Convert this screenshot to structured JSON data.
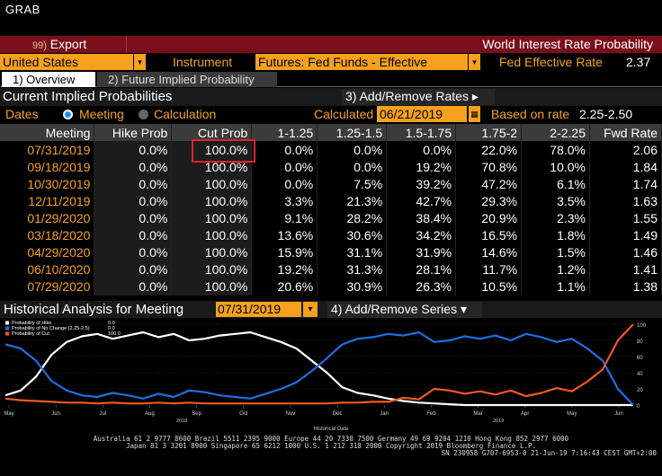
{
  "grab": "GRAB",
  "toolbar": {
    "export_num": "99)",
    "export_label": "Export",
    "title": "World Interest Rate Probability"
  },
  "instrument": {
    "country": "United States",
    "label": "Instrument",
    "instrument_value": "Futures: Fed Funds - Effective",
    "rate_label": "Fed Effective Rate",
    "rate_value": "2.37"
  },
  "tabs": [
    {
      "label": "1) Overview"
    },
    {
      "label": "2) Future Implied Probability"
    }
  ],
  "cip": {
    "title": "Current Implied Probabilities",
    "add_remove": "3) Add/Remove Rates ▸"
  },
  "dates": {
    "label": "Dates",
    "meeting": "Meeting",
    "calculation": "Calculation",
    "calculated_label": "Calculated",
    "calculated_value": "06/21/2019",
    "based_label": "Based on rate",
    "based_value": "2.25-2.50"
  },
  "table": {
    "headers": [
      "Meeting",
      "Hike Prob",
      "Cut Prob",
      "1-1.25",
      "1.25-1.5",
      "1.5-1.75",
      "1.75-2",
      "2-2.25",
      "Fwd Rate"
    ],
    "rows": [
      [
        "07/31/2019",
        "0.0%",
        "100.0%",
        "0.0%",
        "0.0%",
        "0.0%",
        "22.0%",
        "78.0%",
        "2.06"
      ],
      [
        "09/18/2019",
        "0.0%",
        "100.0%",
        "0.0%",
        "0.0%",
        "19.2%",
        "70.8%",
        "10.0%",
        "1.84"
      ],
      [
        "10/30/2019",
        "0.0%",
        "100.0%",
        "0.0%",
        "7.5%",
        "39.2%",
        "47.2%",
        "6.1%",
        "1.74"
      ],
      [
        "12/11/2019",
        "0.0%",
        "100.0%",
        "3.3%",
        "21.3%",
        "42.7%",
        "29.3%",
        "3.5%",
        "1.63"
      ],
      [
        "01/29/2020",
        "0.0%",
        "100.0%",
        "9.1%",
        "28.2%",
        "38.4%",
        "20.9%",
        "2.3%",
        "1.55"
      ],
      [
        "03/18/2020",
        "0.0%",
        "100.0%",
        "13.6%",
        "30.6%",
        "34.2%",
        "16.5%",
        "1.8%",
        "1.49"
      ],
      [
        "04/29/2020",
        "0.0%",
        "100.0%",
        "15.9%",
        "31.1%",
        "31.9%",
        "14.6%",
        "1.5%",
        "1.46"
      ],
      [
        "06/10/2020",
        "0.0%",
        "100.0%",
        "19.2%",
        "31.3%",
        "28.1%",
        "11.7%",
        "1.2%",
        "1.41"
      ],
      [
        "07/29/2020",
        "0.0%",
        "100.0%",
        "20.6%",
        "30.9%",
        "26.3%",
        "10.5%",
        "1.1%",
        "1.38"
      ]
    ]
  },
  "history": {
    "title": "Historical Analysis for Meeting",
    "meeting_date": "07/31/2019",
    "add_remove": "4) Add/Remove Series ▾"
  },
  "chart_data": {
    "type": "line",
    "legend": [
      {
        "name": "Probability of Hike",
        "value": "0.0",
        "color": "#ffffff"
      },
      {
        "name": "Probability of No Change (2.25-2.5)",
        "value": "0.0",
        "color": "#1e6fe0"
      },
      {
        "name": "Probability of Cut",
        "value": "100.0",
        "color": "#f05a1e"
      }
    ],
    "xticks": [
      "May",
      "Jun",
      "Jul",
      "Aug",
      "Sep",
      "Oct",
      "Nov",
      "Dec",
      "Jan",
      "Feb",
      "Mar",
      "Apr",
      "May",
      "Jun"
    ],
    "year_labels": [
      "2018",
      "2019"
    ],
    "xlabel": "Historical Date",
    "yticks": [
      "100",
      "80",
      "60",
      "40",
      "20",
      "0"
    ],
    "ylim": [
      0,
      100
    ],
    "series": [
      {
        "name": "Probability of Hike",
        "color": "#ffffff",
        "values": [
          12,
          18,
          35,
          62,
          78,
          85,
          88,
          82,
          86,
          90,
          84,
          88,
          80,
          82,
          86,
          88,
          90,
          84,
          78,
          70,
          55,
          40,
          22,
          15,
          12,
          8,
          5,
          3,
          2,
          1,
          0,
          0,
          0,
          0,
          0,
          0,
          0,
          0,
          0,
          0,
          0,
          0
        ]
      },
      {
        "name": "Probability of No Change",
        "color": "#1e6fe0",
        "values": [
          75,
          70,
          55,
          30,
          18,
          12,
          10,
          15,
          12,
          8,
          14,
          10,
          18,
          16,
          12,
          10,
          8,
          14,
          20,
          28,
          42,
          58,
          75,
          82,
          84,
          88,
          86,
          90,
          78,
          80,
          85,
          82,
          86,
          80,
          88,
          84,
          78,
          82,
          70,
          55,
          20,
          0
        ]
      },
      {
        "name": "Probability of Cut",
        "color": "#f05a1e",
        "values": [
          8,
          6,
          5,
          4,
          3,
          3,
          2,
          3,
          2,
          2,
          3,
          2,
          3,
          2,
          2,
          2,
          2,
          2,
          2,
          2,
          2,
          2,
          3,
          3,
          4,
          4,
          9,
          7,
          20,
          18,
          14,
          17,
          13,
          18,
          11,
          15,
          21,
          17,
          29,
          44,
          80,
          100
        ]
      }
    ]
  },
  "footer": {
    "line1": "Australia 61 2 9777 8600 Brazil 5511 2395 9000 Europe 44 20 7330 7500 Germany 49 69 9204 1210 Hong Kong 852 2977 6000",
    "line2": "Japan 81 3 3201 8900      Singapore 65 6212 1000      U.S. 1 212 318 2000          Copyright 2019 Bloomberg Finance L.P.",
    "line3": "SN 230958 G707-6953-0 21-Jun-19  7:16:43 CEST GMT+2:00"
  },
  "colors": {
    "orange": "#f5a11d",
    "redbar": "#7a0f1c",
    "highlight": "#e0212b"
  }
}
